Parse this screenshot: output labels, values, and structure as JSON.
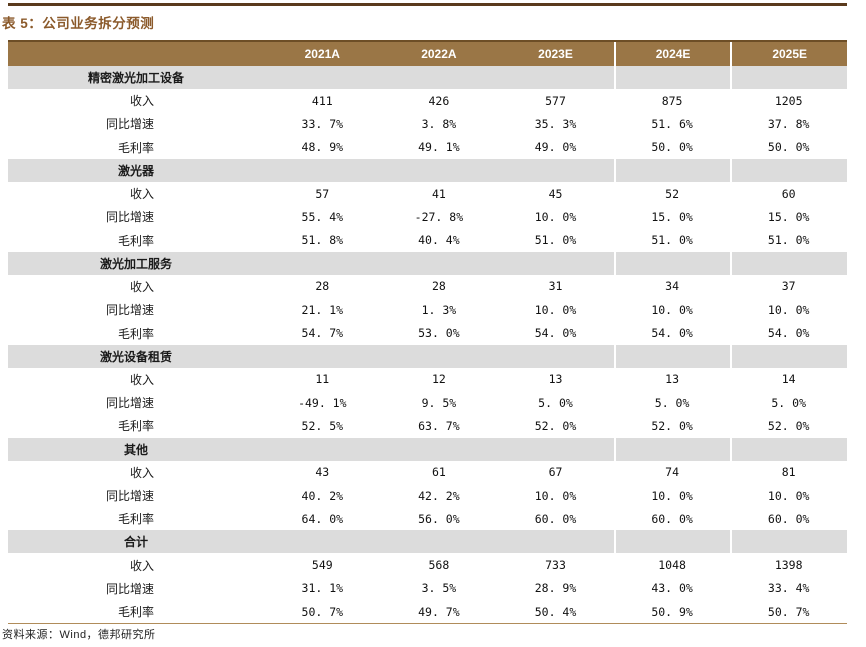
{
  "title": "表 5：公司业务拆分预测",
  "source": "资料来源：Wind，德邦研究所",
  "colors": {
    "top_rule": "#5a3a1c",
    "title_brown": "#8b5a2b",
    "header_bg": "#9a7646",
    "header_text": "#ffffff",
    "band_bg": "#dcdcdc",
    "bottom_rule": "#b08c5a"
  },
  "table": {
    "columns": [
      "2021A",
      "2022A",
      "2023E",
      "2024E",
      "2025E"
    ],
    "sections": [
      {
        "name": "精密激光加工设备",
        "rows": [
          {
            "label": "收入",
            "values": [
              "411",
              "426",
              "577",
              "875",
              "1205"
            ]
          },
          {
            "label": "同比增速",
            "values": [
              "33. 7%",
              "3. 8%",
              "35. 3%",
              "51. 6%",
              "37. 8%"
            ]
          },
          {
            "label": "毛利率",
            "values": [
              "48. 9%",
              "49. 1%",
              "49. 0%",
              "50. 0%",
              "50. 0%"
            ]
          }
        ]
      },
      {
        "name": "激光器",
        "rows": [
          {
            "label": "收入",
            "values": [
              "57",
              "41",
              "45",
              "52",
              "60"
            ]
          },
          {
            "label": "同比增速",
            "values": [
              "55. 4%",
              "-27. 8%",
              "10. 0%",
              "15. 0%",
              "15. 0%"
            ]
          },
          {
            "label": "毛利率",
            "values": [
              "51. 8%",
              "40. 4%",
              "51. 0%",
              "51. 0%",
              "51. 0%"
            ]
          }
        ]
      },
      {
        "name": "激光加工服务",
        "rows": [
          {
            "label": "收入",
            "values": [
              "28",
              "28",
              "31",
              "34",
              "37"
            ]
          },
          {
            "label": "同比增速",
            "values": [
              "21. 1%",
              "1. 3%",
              "10. 0%",
              "10. 0%",
              "10. 0%"
            ]
          },
          {
            "label": "毛利率",
            "values": [
              "54. 7%",
              "53. 0%",
              "54. 0%",
              "54. 0%",
              "54. 0%"
            ]
          }
        ]
      },
      {
        "name": "激光设备租赁",
        "rows": [
          {
            "label": "收入",
            "values": [
              "11",
              "12",
              "13",
              "13",
              "14"
            ]
          },
          {
            "label": "同比增速",
            "values": [
              "-49. 1%",
              "9. 5%",
              "5. 0%",
              "5. 0%",
              "5. 0%"
            ]
          },
          {
            "label": "毛利率",
            "values": [
              "52. 5%",
              "63. 7%",
              "52. 0%",
              "52. 0%",
              "52. 0%"
            ]
          }
        ]
      },
      {
        "name": "其他",
        "rows": [
          {
            "label": "收入",
            "values": [
              "43",
              "61",
              "67",
              "74",
              "81"
            ]
          },
          {
            "label": "同比增速",
            "values": [
              "40. 2%",
              "42. 2%",
              "10. 0%",
              "10. 0%",
              "10. 0%"
            ]
          },
          {
            "label": "毛利率",
            "values": [
              "64. 0%",
              "56. 0%",
              "60. 0%",
              "60. 0%",
              "60. 0%"
            ]
          }
        ]
      },
      {
        "name": "合计",
        "rows": [
          {
            "label": "收入",
            "values": [
              "549",
              "568",
              "733",
              "1048",
              "1398"
            ]
          },
          {
            "label": "同比增速",
            "values": [
              "31. 1%",
              "3. 5%",
              "28. 9%",
              "43. 0%",
              "33. 4%"
            ]
          },
          {
            "label": "毛利率",
            "values": [
              "50. 7%",
              "49. 7%",
              "50. 4%",
              "50. 9%",
              "50. 7%"
            ]
          }
        ]
      }
    ]
  }
}
